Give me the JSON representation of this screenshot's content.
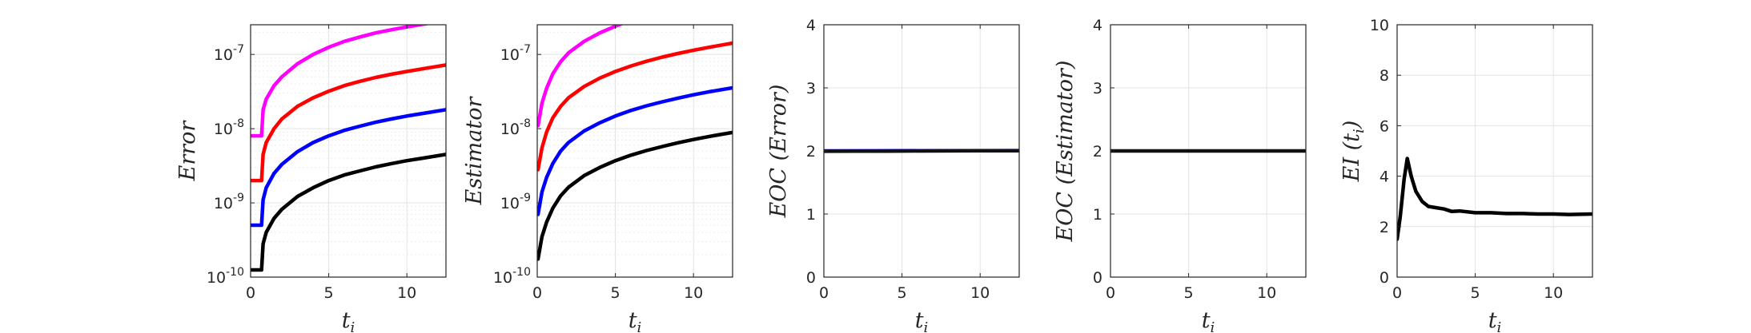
{
  "chart_data": [
    {
      "type": "line",
      "ylabel": "Error",
      "xlabel": "t",
      "xlabel_sub": "i",
      "yscale": "log",
      "xlim": [
        0,
        12.5
      ],
      "ylim_exp": [
        -10,
        -6.6
      ],
      "xticks": [
        0,
        5,
        10
      ],
      "yticks_exp": [
        -10,
        -9,
        -8,
        -7
      ],
      "grid": true,
      "series": [
        {
          "color": "#ff00ff",
          "x": [
            0,
            0.35,
            0.7,
            0.8,
            1,
            1.5,
            2,
            3,
            4,
            5,
            6,
            7,
            8,
            9,
            10,
            11,
            12.5
          ],
          "y": [
            8e-09,
            8e-09,
            8e-09,
            1.8e-08,
            2.5e-08,
            3.8e-08,
            5e-08,
            7.5e-08,
            1e-07,
            1.25e-07,
            1.5e-07,
            1.72e-07,
            1.95e-07,
            2.15e-07,
            2.35e-07,
            2.55e-07,
            2.85e-07
          ]
        },
        {
          "color": "#ff0000",
          "x": [
            0,
            0.35,
            0.7,
            0.8,
            1,
            1.5,
            2,
            3,
            4,
            5,
            6,
            7,
            8,
            9,
            10,
            11,
            12.5
          ],
          "y": [
            2e-09,
            2e-09,
            2e-09,
            4.5e-09,
            6.5e-09,
            1e-08,
            1.35e-08,
            2e-08,
            2.6e-08,
            3.2e-08,
            3.8e-08,
            4.35e-08,
            4.9e-08,
            5.4e-08,
            5.9e-08,
            6.4e-08,
            7.2e-08
          ]
        },
        {
          "color": "#0000ff",
          "x": [
            0,
            0.35,
            0.7,
            0.8,
            1,
            1.5,
            2,
            3,
            4,
            5,
            6,
            7,
            8,
            9,
            10,
            11,
            12.5
          ],
          "y": [
            5e-10,
            5e-10,
            5e-10,
            1.1e-09,
            1.6e-09,
            2.5e-09,
            3.3e-09,
            4.9e-09,
            6.5e-09,
            8e-09,
            9.5e-09,
            1.08e-08,
            1.22e-08,
            1.35e-08,
            1.48e-08,
            1.6e-08,
            1.8e-08
          ]
        },
        {
          "color": "#000000",
          "x": [
            0,
            0.35,
            0.7,
            0.8,
            1,
            1.5,
            2,
            3,
            4,
            5,
            6,
            7,
            8,
            9,
            10,
            11,
            12.5
          ],
          "y": [
            1.25e-10,
            1.25e-10,
            1.25e-10,
            2.8e-10,
            4e-10,
            6.2e-10,
            8.2e-10,
            1.22e-09,
            1.6e-09,
            2e-09,
            2.38e-09,
            2.7e-09,
            3.05e-09,
            3.38e-09,
            3.7e-09,
            4e-09,
            4.5e-09
          ]
        }
      ]
    },
    {
      "type": "line",
      "ylabel": "Estimator",
      "xlabel": "t",
      "xlabel_sub": "i",
      "yscale": "log",
      "xlim": [
        0,
        12.5
      ],
      "ylim_exp": [
        -10,
        -6.6
      ],
      "xticks": [
        0,
        5,
        10
      ],
      "yticks_exp": [
        -10,
        -9,
        -8,
        -7
      ],
      "grid": true,
      "series": [
        {
          "color": "#ff00ff",
          "x": [
            0.05,
            0.3,
            0.6,
            1,
            1.5,
            2,
            3,
            4,
            5,
            6,
            7,
            8,
            9.2
          ],
          "y": [
            1.1e-08,
            2.2e-08,
            3.5e-08,
            5.5e-08,
            8e-08,
            1.05e-07,
            1.5e-07,
            1.95e-07,
            2.4e-07,
            2.9e-07,
            3.4e-07,
            3.9e-07,
            4.6e-07
          ]
        },
        {
          "color": "#ff0000",
          "x": [
            0.05,
            0.3,
            0.6,
            1,
            1.5,
            2,
            3,
            4,
            5,
            6,
            7,
            8,
            9,
            10,
            11,
            12.5
          ],
          "y": [
            2.8e-09,
            5.5e-09,
            9e-09,
            1.4e-08,
            2e-08,
            2.6e-08,
            3.7e-08,
            4.8e-08,
            5.9e-08,
            7e-08,
            8.1e-08,
            9.2e-08,
            1.03e-07,
            1.14e-07,
            1.25e-07,
            1.42e-07
          ]
        },
        {
          "color": "#0000ff",
          "x": [
            0.05,
            0.3,
            0.6,
            1,
            1.5,
            2,
            3,
            4,
            5,
            6,
            7,
            8,
            9,
            10,
            11,
            12.5
          ],
          "y": [
            7e-10,
            1.4e-09,
            2.2e-09,
            3.4e-09,
            5e-09,
            6.5e-09,
            9.3e-09,
            1.2e-08,
            1.48e-08,
            1.76e-08,
            2.03e-08,
            2.3e-08,
            2.58e-08,
            2.86e-08,
            3.14e-08,
            3.55e-08
          ]
        },
        {
          "color": "#000000",
          "x": [
            0.05,
            0.3,
            0.6,
            1,
            1.5,
            2,
            3,
            4,
            5,
            6,
            7,
            8,
            9,
            10,
            11,
            12.5
          ],
          "y": [
            1.75e-10,
            3.5e-10,
            5.5e-10,
            8.5e-10,
            1.25e-09,
            1.62e-09,
            2.33e-09,
            3e-09,
            3.7e-09,
            4.4e-09,
            5.08e-09,
            5.75e-09,
            6.45e-09,
            7.15e-09,
            7.85e-09,
            8.9e-09
          ]
        }
      ]
    },
    {
      "type": "line",
      "ylabel": "EOC (Error)",
      "xlabel": "t",
      "xlabel_sub": "i",
      "yscale": "linear",
      "xlim": [
        0,
        12.5
      ],
      "ylim": [
        0,
        4
      ],
      "xticks": [
        0,
        5,
        10
      ],
      "yticks": [
        0,
        1,
        2,
        3,
        4
      ],
      "grid": true,
      "series": [
        {
          "color": "#0000ff",
          "x": [
            0,
            12.5
          ],
          "y": [
            2.0,
            2.005
          ]
        },
        {
          "color": "#111111",
          "x": [
            0,
            2,
            4,
            6,
            8,
            10,
            12.5
          ],
          "y": [
            1.995,
            1.996,
            1.998,
            2.0,
            2.001,
            2.002,
            2.003
          ]
        }
      ]
    },
    {
      "type": "line",
      "ylabel": "EOC (Estimator)",
      "xlabel": "t",
      "xlabel_sub": "i",
      "yscale": "linear",
      "xlim": [
        0,
        12.5
      ],
      "ylim": [
        0,
        4
      ],
      "xticks": [
        0,
        5,
        10
      ],
      "yticks": [
        0,
        1,
        2,
        3,
        4
      ],
      "grid": true,
      "series": [
        {
          "color": "#111111",
          "x": [
            0,
            12.5
          ],
          "y": [
            2.0,
            2.0
          ]
        }
      ]
    },
    {
      "type": "line",
      "ylabel": "EI (t",
      "ylabel_sub": "i",
      "ylabel_close": ")",
      "xlabel": "t",
      "xlabel_sub": "i",
      "yscale": "linear",
      "xlim": [
        0,
        12.5
      ],
      "ylim": [
        0,
        10
      ],
      "xticks": [
        0,
        5,
        10
      ],
      "yticks": [
        0,
        2,
        4,
        6,
        8,
        10
      ],
      "grid": true,
      "series": [
        {
          "color": "#000000",
          "x": [
            0,
            0.2,
            0.45,
            0.65,
            0.9,
            1.2,
            1.6,
            2.0,
            2.5,
            3.0,
            3.5,
            4.0,
            5.0,
            6.0,
            7.0,
            8.0,
            9.0,
            10.0,
            11.0,
            12.5
          ],
          "y": [
            1.5,
            2.4,
            3.9,
            4.7,
            4.0,
            3.4,
            3.0,
            2.8,
            2.75,
            2.7,
            2.6,
            2.62,
            2.55,
            2.55,
            2.52,
            2.52,
            2.5,
            2.5,
            2.48,
            2.5
          ]
        }
      ]
    }
  ]
}
